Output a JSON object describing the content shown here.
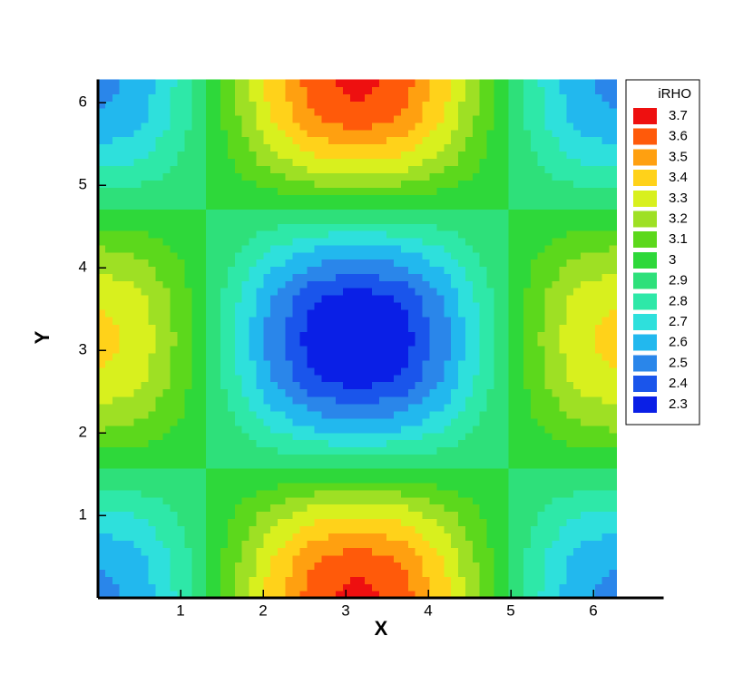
{
  "chart_data": {
    "type": "contour",
    "xlabel": "X",
    "ylabel": "Y",
    "xlim": [
      0,
      6.85
    ],
    "ylim": [
      0,
      6.28
    ],
    "xticks": [
      1,
      2,
      3,
      4,
      5,
      6
    ],
    "yticks": [
      1,
      2,
      3,
      4,
      5,
      6
    ],
    "x": [
      0,
      0.52,
      1.05,
      1.57,
      2.09,
      2.62,
      3.14,
      3.67,
      4.19,
      4.71,
      5.24,
      5.76,
      6.28
    ],
    "y": [
      0,
      0.52,
      1.05,
      1.57,
      2.09,
      2.62,
      3.14,
      3.67,
      4.19,
      4.71,
      5.24,
      5.76,
      6.28
    ],
    "z": [
      [
        2.55,
        2.63,
        2.85,
        3.15,
        3.45,
        3.67,
        3.75,
        3.67,
        3.45,
        3.15,
        2.85,
        2.63,
        2.55
      ],
      [
        2.61,
        2.68,
        2.87,
        3.13,
        3.39,
        3.58,
        3.65,
        3.58,
        3.39,
        3.13,
        2.87,
        2.68,
        2.61
      ],
      [
        2.78,
        2.82,
        2.93,
        3.08,
        3.23,
        3.34,
        3.38,
        3.34,
        3.23,
        3.08,
        2.93,
        2.82,
        2.78
      ],
      [
        3,
        3,
        3,
        3,
        3,
        3,
        3,
        3,
        3,
        3,
        3,
        3,
        3
      ],
      [
        3.23,
        3.18,
        3.08,
        2.93,
        2.78,
        2.67,
        2.63,
        2.67,
        2.78,
        2.93,
        3.08,
        3.18,
        3.23
      ],
      [
        3.39,
        3.32,
        3.13,
        2.87,
        2.61,
        2.42,
        2.35,
        2.42,
        2.61,
        2.87,
        3.13,
        3.32,
        3.39
      ],
      [
        3.45,
        3.37,
        3.15,
        2.85,
        2.55,
        2.33,
        2.25,
        2.33,
        2.55,
        2.85,
        3.15,
        3.37,
        3.45
      ],
      [
        3.39,
        3.32,
        3.13,
        2.87,
        2.61,
        2.42,
        2.35,
        2.42,
        2.61,
        2.87,
        3.13,
        3.32,
        3.39
      ],
      [
        3.23,
        3.18,
        3.08,
        2.93,
        2.78,
        2.67,
        2.63,
        2.67,
        2.78,
        2.93,
        3.08,
        3.18,
        3.23
      ],
      [
        3,
        3,
        3,
        3,
        3,
        3,
        3,
        3,
        3,
        3,
        3,
        3,
        3
      ],
      [
        2.78,
        2.82,
        2.93,
        3.08,
        3.23,
        3.34,
        3.38,
        3.34,
        3.23,
        3.08,
        2.93,
        2.82,
        2.78
      ],
      [
        2.61,
        2.68,
        2.87,
        3.13,
        3.39,
        3.58,
        3.65,
        3.58,
        3.39,
        3.13,
        2.87,
        2.68,
        2.61
      ],
      [
        2.55,
        2.63,
        2.85,
        3.15,
        3.45,
        3.67,
        3.75,
        3.67,
        3.45,
        3.15,
        2.85,
        2.63,
        2.55
      ]
    ],
    "legend_title": "iRHO",
    "levels": [
      2.3,
      2.4,
      2.5,
      2.6,
      2.7,
      2.8,
      2.9,
      3,
      3.1,
      3.2,
      3.3,
      3.4,
      3.5,
      3.6,
      3.7
    ],
    "colors": [
      "#0a1fe6",
      "#1a55eb",
      "#2a86ea",
      "#22b8ee",
      "#2ee0dc",
      "#2ee8a8",
      "#2ee07a",
      "#2ed83a",
      "#5cd81c",
      "#9ee024",
      "#d8f01e",
      "#ffd21a",
      "#ffa010",
      "#ff5a0a",
      "#ee1010"
    ]
  }
}
